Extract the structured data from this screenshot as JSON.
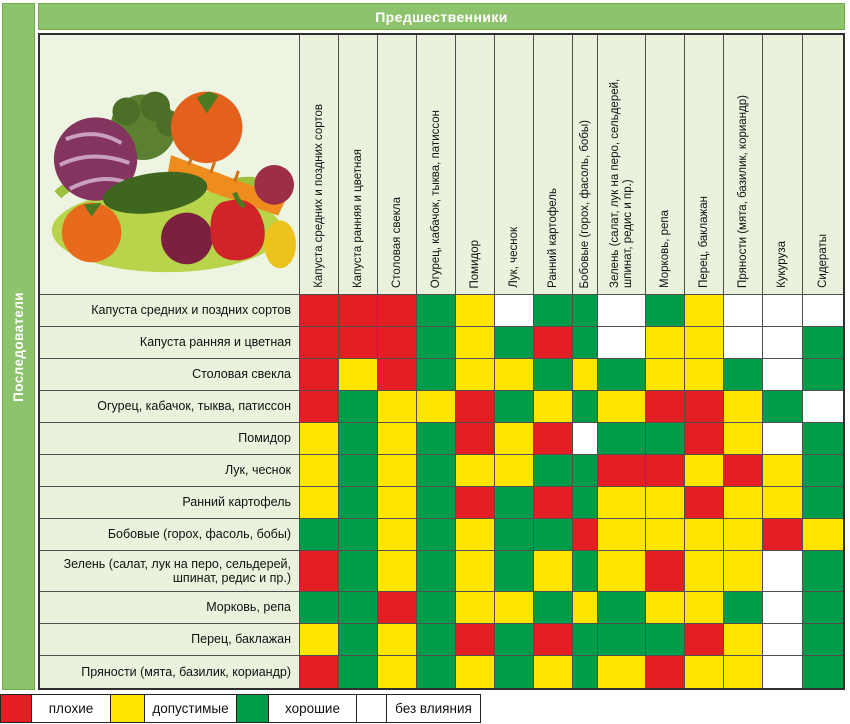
{
  "chart_data": {
    "type": "heatmap",
    "title": "Предшественники",
    "ylabel": "Последователи",
    "columns": [
      "Капуста средних и поздних сортов",
      "Капуста ранняя и цветная",
      "Столовая свекла",
      "Огурец, кабачок, тыква, патиссон",
      "Помидор",
      "Лук, чеснок",
      "Ранний картофель",
      "Бобовые (горох, фасоль, бобы)",
      "Зелень (салат, лук на перо, сельдерей, шпинат, редис и пр.)",
      "Морковь, репа",
      "Перец, баклажан",
      "Пряности (мята, базилик, кориандр)",
      "Кукуруза",
      "Сидераты"
    ],
    "rows": [
      "Капуста средних и поздних сортов",
      "Капуста ранняя и цветная",
      "Столовая свекла",
      "Огурец, кабачок, тыква, патиссон",
      "Помидор",
      "Лук, чеснок",
      "Ранний картофель",
      "Бобовые (горох, фасоль, бобы)",
      "Зелень (салат, лук на перо, сельдерей, шпинат, редис и пр.)",
      "Морковь, репа",
      "Перец, баклажан",
      "Пряности (мята, базилик, кориандр)"
    ],
    "values": [
      [
        "bad",
        "bad",
        "bad",
        "good",
        "ok",
        "none",
        "good",
        "good",
        "none",
        "good",
        "ok",
        "none",
        "none",
        "none"
      ],
      [
        "bad",
        "bad",
        "bad",
        "good",
        "ok",
        "good",
        "bad",
        "good",
        "none",
        "ok",
        "ok",
        "none",
        "none",
        "good"
      ],
      [
        "bad",
        "ok",
        "bad",
        "good",
        "ok",
        "ok",
        "good",
        "ok",
        "good",
        "ok",
        "ok",
        "good",
        "none",
        "good"
      ],
      [
        "bad",
        "good",
        "ok",
        "ok",
        "bad",
        "good",
        "ok",
        "good",
        "ok",
        "bad",
        "bad",
        "ok",
        "good",
        "none"
      ],
      [
        "ok",
        "good",
        "ok",
        "good",
        "bad",
        "ok",
        "bad",
        "none",
        "good",
        "good",
        "bad",
        "ok",
        "none",
        "good"
      ],
      [
        "ok",
        "good",
        "ok",
        "good",
        "ok",
        "ok",
        "good",
        "good",
        "bad",
        "bad",
        "ok",
        "bad",
        "ok",
        "good"
      ],
      [
        "ok",
        "good",
        "ok",
        "good",
        "bad",
        "good",
        "bad",
        "good",
        "ok",
        "ok",
        "bad",
        "ok",
        "ok",
        "good"
      ],
      [
        "good",
        "good",
        "ok",
        "good",
        "ok",
        "good",
        "good",
        "bad",
        "ok",
        "ok",
        "ok",
        "ok",
        "bad",
        "ok"
      ],
      [
        "bad",
        "good",
        "ok",
        "good",
        "ok",
        "good",
        "ok",
        "good",
        "ok",
        "bad",
        "ok",
        "ok",
        "none",
        "good"
      ],
      [
        "good",
        "good",
        "bad",
        "good",
        "ok",
        "ok",
        "good",
        "ok",
        "good",
        "ok",
        "ok",
        "good",
        "none",
        "good"
      ],
      [
        "ok",
        "good",
        "ok",
        "good",
        "bad",
        "good",
        "bad",
        "good",
        "good",
        "good",
        "bad",
        "ok",
        "none",
        "good"
      ],
      [
        "bad",
        "good",
        "ok",
        "good",
        "ok",
        "good",
        "ok",
        "good",
        "ok",
        "bad",
        "ok",
        "ok",
        "none",
        "good"
      ]
    ],
    "legend": [
      {
        "key": "bad",
        "label": "плохие"
      },
      {
        "key": "ok",
        "label": "допустимые"
      },
      {
        "key": "good",
        "label": "хорошие"
      },
      {
        "key": "none",
        "label": "без влияния"
      }
    ],
    "colors": {
      "bad": "#e31f23",
      "ok": "#ffe500",
      "good": "#009c4a",
      "none": "#ffffff",
      "bar": "#8dc36c",
      "cell_bg": "#eaf2dd"
    }
  }
}
